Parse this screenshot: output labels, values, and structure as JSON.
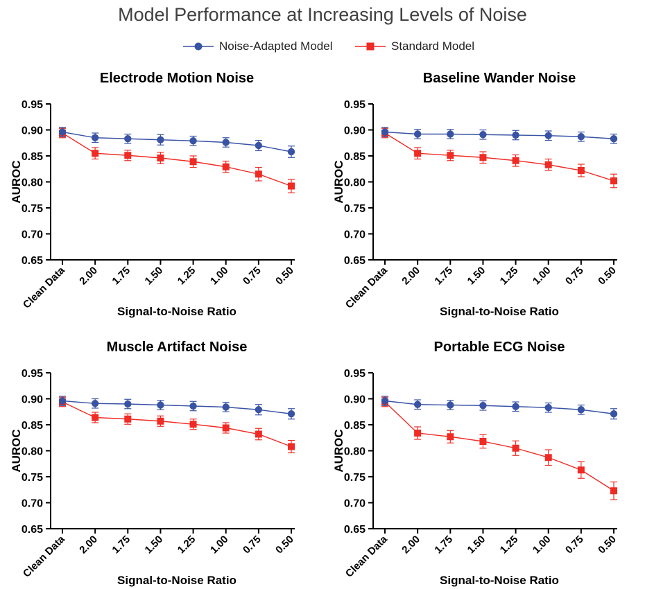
{
  "title": "Model Performance at Increasing Levels of Noise",
  "colors": {
    "adapted": "#3953a4",
    "standard": "#ef2b24"
  },
  "chart_data": [
    {
      "type": "line",
      "title": "Electrode Motion Noise",
      "xlabel": "Signal-to-Noise Ratio",
      "ylabel": "AUROC",
      "categories": [
        "Clean Data",
        "2.00",
        "1.75",
        "1.50",
        "1.25",
        "1.00",
        "0.75",
        "0.50"
      ],
      "ylim": [
        0.65,
        0.95
      ],
      "yticks": [
        "0.65",
        "0.70",
        "0.75",
        "0.80",
        "0.85",
        "0.90",
        "0.95"
      ],
      "legend": "top-center",
      "grid": false,
      "series": [
        {
          "name": "Noise-Adapted Model",
          "values": [
            0.896,
            0.885,
            0.883,
            0.881,
            0.879,
            0.876,
            0.87,
            0.858
          ],
          "errors": [
            0.009,
            0.009,
            0.009,
            0.01,
            0.009,
            0.009,
            0.01,
            0.011
          ]
        },
        {
          "name": "Standard Model",
          "values": [
            0.894,
            0.855,
            0.851,
            0.846,
            0.839,
            0.829,
            0.815,
            0.792
          ],
          "errors": [
            0.009,
            0.011,
            0.01,
            0.011,
            0.011,
            0.011,
            0.013,
            0.013
          ]
        }
      ]
    },
    {
      "type": "line",
      "title": "Baseline Wander Noise",
      "xlabel": "Signal-to-Noise Ratio",
      "ylabel": "AUROC",
      "categories": [
        "Clean Data",
        "2.00",
        "1.75",
        "1.50",
        "1.25",
        "1.00",
        "0.75",
        "0.50"
      ],
      "ylim": [
        0.65,
        0.95
      ],
      "yticks": [
        "0.65",
        "0.70",
        "0.75",
        "0.80",
        "0.85",
        "0.90",
        "0.95"
      ],
      "legend": "top-center",
      "grid": false,
      "series": [
        {
          "name": "Noise-Adapted Model",
          "values": [
            0.896,
            0.892,
            0.892,
            0.891,
            0.89,
            0.889,
            0.887,
            0.883
          ],
          "errors": [
            0.009,
            0.009,
            0.009,
            0.009,
            0.009,
            0.009,
            0.009,
            0.009
          ]
        },
        {
          "name": "Standard Model",
          "values": [
            0.894,
            0.855,
            0.851,
            0.847,
            0.841,
            0.833,
            0.822,
            0.802
          ],
          "errors": [
            0.009,
            0.011,
            0.01,
            0.011,
            0.011,
            0.011,
            0.012,
            0.013
          ]
        }
      ]
    },
    {
      "type": "line",
      "title": "Muscle Artifact Noise",
      "xlabel": "Signal-to-Noise Ratio",
      "ylabel": "AUROC",
      "categories": [
        "Clean Data",
        "2.00",
        "1.75",
        "1.50",
        "1.25",
        "1.00",
        "0.75",
        "0.50"
      ],
      "ylim": [
        0.65,
        0.95
      ],
      "yticks": [
        "0.65",
        "0.70",
        "0.75",
        "0.80",
        "0.85",
        "0.90",
        "0.95"
      ],
      "legend": "top-center",
      "grid": false,
      "series": [
        {
          "name": "Noise-Adapted Model",
          "values": [
            0.896,
            0.891,
            0.89,
            0.888,
            0.886,
            0.884,
            0.879,
            0.871
          ],
          "errors": [
            0.009,
            0.009,
            0.009,
            0.009,
            0.009,
            0.009,
            0.01,
            0.01
          ]
        },
        {
          "name": "Standard Model",
          "values": [
            0.894,
            0.864,
            0.861,
            0.857,
            0.851,
            0.844,
            0.832,
            0.808
          ],
          "errors": [
            0.009,
            0.01,
            0.01,
            0.01,
            0.01,
            0.01,
            0.011,
            0.012
          ]
        }
      ]
    },
    {
      "type": "line",
      "title": "Portable ECG Noise",
      "xlabel": "Signal-to-Noise Ratio",
      "ylabel": "AUROC",
      "categories": [
        "Clean Data",
        "2.00",
        "1.75",
        "1.50",
        "1.25",
        "1.00",
        "0.75",
        "0.50"
      ],
      "ylim": [
        0.65,
        0.95
      ],
      "yticks": [
        "0.65",
        "0.70",
        "0.75",
        "0.80",
        "0.85",
        "0.90",
        "0.95"
      ],
      "legend": "top-center",
      "grid": false,
      "series": [
        {
          "name": "Noise-Adapted Model",
          "values": [
            0.896,
            0.889,
            0.888,
            0.887,
            0.885,
            0.883,
            0.879,
            0.871
          ],
          "errors": [
            0.009,
            0.009,
            0.009,
            0.009,
            0.009,
            0.009,
            0.009,
            0.01
          ]
        },
        {
          "name": "Standard Model",
          "values": [
            0.894,
            0.834,
            0.827,
            0.818,
            0.805,
            0.787,
            0.763,
            0.723
          ],
          "errors": [
            0.009,
            0.012,
            0.012,
            0.013,
            0.014,
            0.015,
            0.016,
            0.017
          ]
        }
      ]
    }
  ]
}
